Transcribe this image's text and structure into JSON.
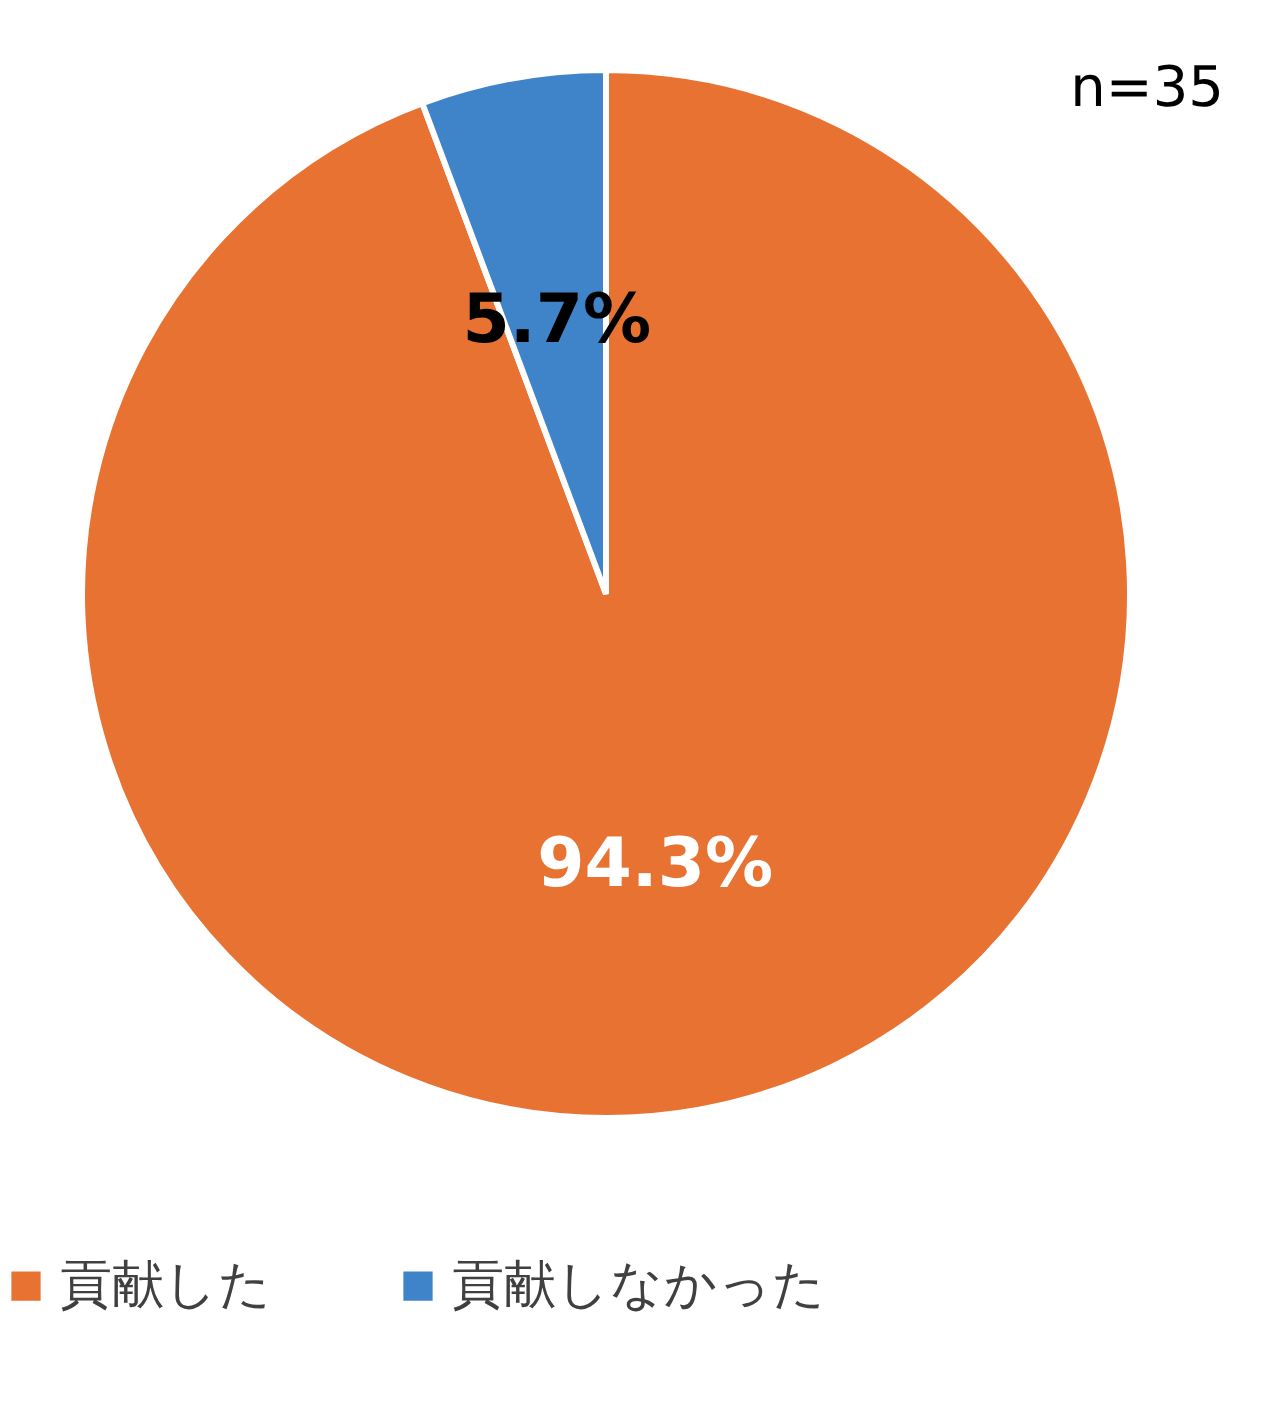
{
  "chart_data": {
    "type": "pie",
    "categories": [
      "貢献した",
      "貢献しなかった"
    ],
    "values": [
      94.3,
      5.7
    ],
    "colors": [
      "#e87232",
      "#3f83c8"
    ],
    "value_labels": [
      "94.3%",
      "5.7%"
    ],
    "annotations": [
      "n=35"
    ],
    "legend": "bottom"
  }
}
